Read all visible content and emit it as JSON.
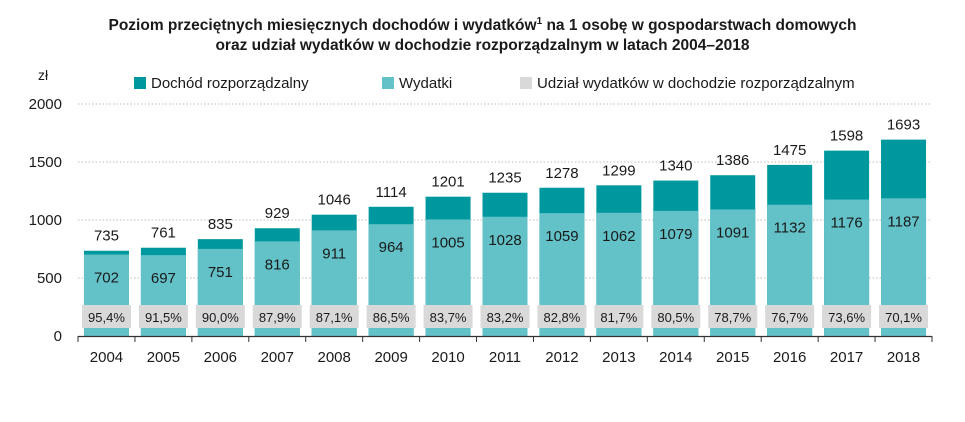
{
  "title": {
    "line1_a": "Poziom przeciętnych miesięcznych dochodów i wydatków",
    "footnote_mark": "1",
    "line1_b": " na 1 osobę w gospodarstwach domowych",
    "line2": "oraz udział wydatków w dochodzie rozporządzalnym w latach 2004–2018"
  },
  "colors": {
    "income": "#00989f",
    "expenses": "#62c2c8",
    "share": "#d9d9d9",
    "axis": "#333333",
    "grid": "#bdbdbd"
  },
  "chart_data": {
    "type": "bar",
    "ylabel": "zł",
    "ylim": [
      0,
      2000
    ],
    "yticks": [
      0,
      500,
      1000,
      1500,
      2000
    ],
    "grid": true,
    "legend_position": "top",
    "categories": [
      "2004",
      "2005",
      "2006",
      "2007",
      "2008",
      "2009",
      "2010",
      "2011",
      "2012",
      "2013",
      "2014",
      "2015",
      "2016",
      "2017",
      "2018"
    ],
    "series": [
      {
        "name": "Dochód rozporządzalny",
        "values": [
          735,
          761,
          835,
          929,
          1046,
          1114,
          1201,
          1235,
          1278,
          1299,
          1340,
          1386,
          1475,
          1598,
          1693
        ]
      },
      {
        "name": "Wydatki",
        "values": [
          702,
          697,
          751,
          816,
          911,
          964,
          1005,
          1028,
          1059,
          1062,
          1079,
          1091,
          1132,
          1176,
          1187
        ]
      },
      {
        "name": "Udział wydatków w dochodzie rozporządzalnym",
        "values": [
          "95,4%",
          "91,5%",
          "90,0%",
          "87,9%",
          "87,1%",
          "86,5%",
          "83,7%",
          "83,2%",
          "82,8%",
          "81,7%",
          "80,5%",
          "78,7%",
          "76,7%",
          "73,6%",
          "70,1%"
        ]
      }
    ]
  }
}
